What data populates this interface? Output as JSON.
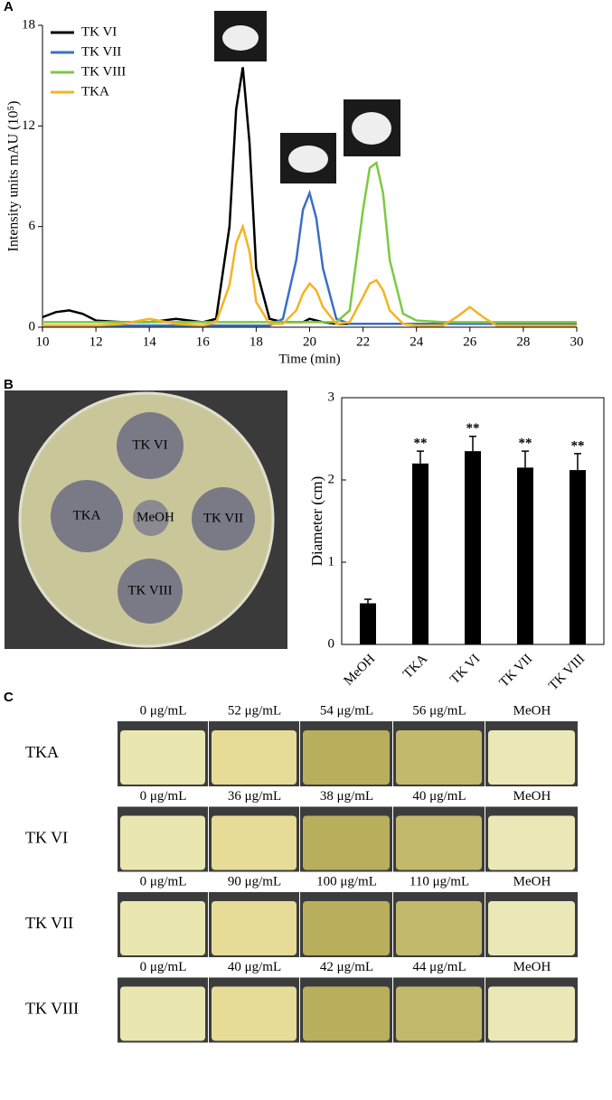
{
  "panel_labels": [
    "A",
    "B",
    "C"
  ],
  "chart_data": [
    {
      "type": "line",
      "x": [
        10,
        10.5,
        11,
        11.5,
        12,
        13,
        14,
        15,
        16,
        16.5,
        17,
        17.25,
        17.5,
        17.75,
        18,
        18.5,
        19,
        19.5,
        19.75,
        20,
        20.25,
        20.5,
        21,
        21.5,
        22,
        22.25,
        22.5,
        22.75,
        23,
        23.5,
        24,
        25,
        25.5,
        26,
        26.5,
        27,
        28,
        29,
        30
      ],
      "xlim": [
        10,
        30
      ],
      "xticks": [
        10,
        12,
        14,
        16,
        18,
        20,
        22,
        24,
        26,
        28,
        30
      ],
      "ylim": [
        0,
        18
      ],
      "yticks": [
        0,
        6,
        12,
        18
      ],
      "xlabel": "Time (min)",
      "ylabel": "Intensity units mAU (10⁵)",
      "legend": "upper left",
      "series": [
        {
          "name": "TK VI",
          "color": "#000000",
          "values": [
            0.6,
            0.9,
            1.0,
            0.8,
            0.4,
            0.3,
            0.3,
            0.5,
            0.3,
            0.5,
            6,
            13,
            15.5,
            11,
            3.5,
            0.5,
            0.3,
            0.3,
            0.3,
            0.5,
            0.4,
            0.3,
            0.2,
            0.2,
            0.2,
            0.2,
            0.2,
            0.2,
            0.2,
            0.2,
            0.2,
            0.2,
            0.2,
            0.2,
            0.2,
            0.2,
            0.2,
            0.2,
            0.2
          ]
        },
        {
          "name": "TK VII",
          "color": "#3a6fc4",
          "values": [
            0.1,
            0.1,
            0.1,
            0.1,
            0.1,
            0.1,
            0.1,
            0.1,
            0.1,
            0.1,
            0.1,
            0.1,
            0.1,
            0.1,
            0.1,
            0.1,
            0.5,
            4,
            7,
            8,
            6.5,
            3.5,
            0.5,
            0.2,
            0.2,
            0.2,
            0.2,
            0.2,
            0.2,
            0.2,
            0.2,
            0.2,
            0.2,
            0.2,
            0.2,
            0.2,
            0.2,
            0.2,
            0.2
          ]
        },
        {
          "name": "TK VIII",
          "color": "#7dc93f",
          "values": [
            0.3,
            0.3,
            0.3,
            0.3,
            0.3,
            0.3,
            0.3,
            0.3,
            0.3,
            0.3,
            0.3,
            0.3,
            0.3,
            0.3,
            0.3,
            0.3,
            0.3,
            0.3,
            0.3,
            0.3,
            0.3,
            0.3,
            0.3,
            1,
            7,
            9.5,
            9.8,
            8,
            4,
            0.8,
            0.4,
            0.3,
            0.3,
            0.3,
            0.3,
            0.3,
            0.3,
            0.3,
            0.3
          ]
        },
        {
          "name": "TKA",
          "color": "#f5b323",
          "values": [
            0.1,
            0.1,
            0.1,
            0.1,
            0.1,
            0.2,
            0.5,
            0.2,
            0.1,
            0.3,
            2.5,
            5,
            6,
            4.5,
            1.5,
            0.2,
            0.2,
            1,
            2,
            2.6,
            2.2,
            1.2,
            0.2,
            0.3,
            1.8,
            2.6,
            2.8,
            2.2,
            1,
            0.2,
            0.1,
            0.1,
            0.6,
            1.2,
            0.6,
            0.1,
            0.1,
            0.1,
            0.1
          ]
        }
      ]
    },
    {
      "type": "bar",
      "categories": [
        "MeOH",
        "TKA",
        "TK VI",
        "TK VII",
        "TK VIII"
      ],
      "values": [
        0.5,
        2.2,
        2.35,
        2.15,
        2.12
      ],
      "errors": [
        0.05,
        0.15,
        0.18,
        0.2,
        0.2
      ],
      "significance": [
        null,
        "**",
        "**",
        "**",
        "**"
      ],
      "color": "#000000",
      "ylim": [
        0,
        3
      ],
      "yticks": [
        0,
        1,
        2,
        3
      ],
      "ylabel": "Diameter (cm)"
    }
  ],
  "plate": {
    "labels": [
      "TK VI",
      "TKA",
      "MeOH",
      "TK VII",
      "TK VIII"
    ]
  },
  "tubes": {
    "rows": [
      {
        "label": "TKA",
        "concentrations": [
          "0 μg/mL",
          "52 μg/mL",
          "54 μg/mL",
          "56 μg/mL",
          "MeOH"
        ]
      },
      {
        "label": "TK VI",
        "concentrations": [
          "0 μg/mL",
          "36 μg/mL",
          "38 μg/mL",
          "40 μg/mL",
          "MeOH"
        ]
      },
      {
        "label": "TK VII",
        "concentrations": [
          "0 μg/mL",
          "90 μg/mL",
          "100 μg/mL",
          "110 μg/mL",
          "MeOH"
        ]
      },
      {
        "label": "TK VIII",
        "concentrations": [
          "0 μg/mL",
          "40 μg/mL",
          "42 μg/mL",
          "44 μg/mL",
          "MeOH"
        ]
      }
    ]
  }
}
